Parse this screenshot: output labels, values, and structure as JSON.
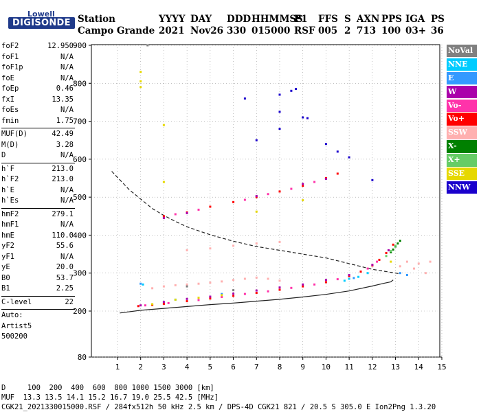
{
  "logo": {
    "top": "Lowell",
    "main": "DIGISONDE"
  },
  "header": {
    "labels": [
      "Station",
      "YYYY",
      "DAY",
      "DDD",
      "HHMMSS",
      "P1",
      "FFS",
      "S",
      "AXN",
      "PPS",
      "IGA",
      "PS"
    ],
    "values": [
      "Campo Grande",
      "2021",
      "Nov26",
      "330",
      "015000",
      "RSF",
      "005",
      "2",
      "713",
      "100",
      "03+",
      "36"
    ]
  },
  "params": [
    {
      "name": "foF2",
      "value": "12.950"
    },
    {
      "name": "foF1",
      "value": "N/A"
    },
    {
      "name": "foF1p",
      "value": "N/A"
    },
    {
      "name": "foE",
      "value": "N/A"
    },
    {
      "name": "foEp",
      "value": "0.46"
    },
    {
      "name": "fxI",
      "value": "13.35"
    },
    {
      "name": "foEs",
      "value": "N/A"
    },
    {
      "name": "fmin",
      "value": "1.75"
    },
    {
      "sep": true
    },
    {
      "name": "MUF(D)",
      "value": "42.49"
    },
    {
      "name": "M(D)",
      "value": "3.28"
    },
    {
      "name": "D",
      "value": "N/A"
    },
    {
      "sep": true
    },
    {
      "name": "h`F",
      "value": "213.0"
    },
    {
      "name": "h`F2",
      "value": "213.0"
    },
    {
      "name": "h`E",
      "value": "N/A"
    },
    {
      "name": "h`Es",
      "value": "N/A"
    },
    {
      "sep": true
    },
    {
      "name": "hmF2",
      "value": "279.1"
    },
    {
      "name": "hmF1",
      "value": "N/A"
    },
    {
      "name": "hmE",
      "value": "110.0"
    },
    {
      "name": "yF2",
      "value": "55.6"
    },
    {
      "name": "yF1",
      "value": "N/A"
    },
    {
      "name": "yE",
      "value": "20.0"
    },
    {
      "name": "B0",
      "value": "53.7"
    },
    {
      "name": "B1",
      "value": "2.25"
    },
    {
      "sep": true
    },
    {
      "name": "C-level",
      "value": "22"
    },
    {
      "sep": true
    },
    {
      "text": "Auto:"
    },
    {
      "text": "Artist5"
    },
    {
      "text": "500200"
    }
  ],
  "legend": [
    {
      "label": "NoVal",
      "color": "#808080"
    },
    {
      "label": "NNE",
      "color": "#00ccff"
    },
    {
      "label": "E",
      "color": "#3399ff"
    },
    {
      "label": "W",
      "color": "#aa00aa"
    },
    {
      "label": "Vo-",
      "color": "#ff33aa"
    },
    {
      "label": "Vo+",
      "color": "#ff0000"
    },
    {
      "label": "SSW",
      "color": "#ffb0b0"
    },
    {
      "label": "X-",
      "color": "#008000"
    },
    {
      "label": "X+",
      "color": "#66cc66"
    },
    {
      "label": "SSE",
      "color": "#e6d800"
    },
    {
      "label": "NNW",
      "color": "#1a00cc"
    }
  ],
  "footer": {
    "line1": "D     100  200  400  600  800 1000 1500 3000 [km]",
    "line2": "MUF  13.3 13.5 14.1 15.2 16.7 19.0 25.5 42.5 [MHz]",
    "line3": "CGK21_2021330015000.RSF / 284fx512h 50 kHz 2.5 km / DPS-4D CGK21 821 / 20.5 S 305.0 E Ion2Png 1.3.20"
  },
  "chart_data": {
    "type": "scatter",
    "xlim": [
      0.75,
      15
    ],
    "ylim": [
      80,
      900
    ],
    "xticks": [
      "1",
      "2",
      "3",
      "4",
      "5",
      "6",
      "7",
      "8",
      "9",
      "10",
      "11",
      "12",
      "13",
      "14",
      "15"
    ],
    "yticks": [
      "80",
      "200",
      "300",
      "400",
      "500",
      "600",
      "700",
      "800",
      "900"
    ],
    "series": [
      {
        "name": "Vo+",
        "color": "#ff0000",
        "points": [
          [
            1.9,
            213
          ],
          [
            2.5,
            216
          ],
          [
            3.0,
            219
          ],
          [
            4.0,
            226
          ],
          [
            5.0,
            233
          ],
          [
            6.0,
            240
          ],
          [
            7.0,
            248
          ],
          [
            8.0,
            256
          ],
          [
            9.0,
            265
          ],
          [
            10.0,
            276
          ],
          [
            11.0,
            292
          ],
          [
            11.5,
            304
          ],
          [
            12.0,
            320
          ],
          [
            12.3,
            335
          ],
          [
            12.6,
            353
          ],
          [
            12.9,
            375
          ],
          [
            3.0,
            450
          ],
          [
            4.0,
            460
          ],
          [
            5.0,
            475
          ],
          [
            6.0,
            487
          ],
          [
            7.0,
            500
          ],
          [
            8.0,
            515
          ],
          [
            9.0,
            530
          ],
          [
            10.0,
            550
          ],
          [
            10.5,
            562
          ]
        ]
      },
      {
        "name": "Vo-",
        "color": "#ff33aa",
        "points": [
          [
            2.2,
            215
          ],
          [
            3.2,
            221
          ],
          [
            4.5,
            229
          ],
          [
            5.5,
            237
          ],
          [
            6.5,
            245
          ],
          [
            7.5,
            252
          ],
          [
            8.5,
            261
          ],
          [
            9.5,
            270
          ],
          [
            10.5,
            284
          ],
          [
            11.8,
            312
          ],
          [
            12.2,
            330
          ],
          [
            3.5,
            455
          ],
          [
            4.5,
            467
          ],
          [
            6.5,
            493
          ],
          [
            7.5,
            508
          ],
          [
            8.5,
            522
          ],
          [
            9.5,
            540
          ]
        ]
      },
      {
        "name": "W",
        "color": "#aa00aa",
        "points": [
          [
            2.0,
            215
          ],
          [
            3.0,
            224
          ],
          [
            4.0,
            232
          ],
          [
            5.0,
            238
          ],
          [
            6.0,
            246
          ],
          [
            7.0,
            254
          ],
          [
            8.0,
            262
          ],
          [
            9.0,
            270
          ],
          [
            10.0,
            282
          ],
          [
            11.0,
            295
          ],
          [
            12.0,
            322
          ],
          [
            12.7,
            360
          ],
          [
            3.0,
            445
          ],
          [
            4.0,
            458
          ],
          [
            7.0,
            503
          ],
          [
            9.0,
            535
          ],
          [
            10.0,
            548
          ]
        ]
      },
      {
        "name": "X-",
        "color": "#008000",
        "points": [
          [
            12.8,
            355
          ],
          [
            13.0,
            370
          ],
          [
            13.2,
            385
          ],
          [
            13.1,
            378
          ],
          [
            12.9,
            362
          ]
        ]
      },
      {
        "name": "X+",
        "color": "#66cc66",
        "points": [
          [
            12.6,
            345
          ],
          [
            12.8,
            358
          ],
          [
            13.0,
            372
          ]
        ]
      },
      {
        "name": "NNE",
        "color": "#00ccff",
        "points": [
          [
            2.1,
            270
          ],
          [
            3.5,
            230
          ],
          [
            11.0,
            285
          ],
          [
            11.4,
            290
          ],
          [
            11.8,
            300
          ],
          [
            10.8,
            280
          ]
        ]
      },
      {
        "name": "E",
        "color": "#3399ff",
        "points": [
          [
            2.0,
            272
          ],
          [
            5.5,
            245
          ],
          [
            11.2,
            287
          ],
          [
            13.2,
            300
          ],
          [
            13.5,
            295
          ]
        ]
      },
      {
        "name": "SSW",
        "color": "#ffb0b0",
        "points": [
          [
            2.5,
            260
          ],
          [
            3.0,
            265
          ],
          [
            3.5,
            268
          ],
          [
            4.0,
            270
          ],
          [
            4.5,
            272
          ],
          [
            5.0,
            275
          ],
          [
            5.5,
            278
          ],
          [
            6.0,
            282
          ],
          [
            6.5,
            285
          ],
          [
            7.0,
            288
          ],
          [
            7.5,
            285
          ],
          [
            8.0,
            280
          ],
          [
            4.0,
            360
          ],
          [
            5.0,
            365
          ],
          [
            6.0,
            372
          ],
          [
            7.0,
            378
          ],
          [
            8.0,
            382
          ],
          [
            13.5,
            330
          ],
          [
            14.0,
            325
          ],
          [
            14.5,
            330
          ],
          [
            13.2,
            318
          ],
          [
            13.8,
            312
          ],
          [
            14.3,
            300
          ]
        ]
      },
      {
        "name": "SSE",
        "color": "#e6d800",
        "points": [
          [
            2.0,
            830
          ],
          [
            2.0,
            805
          ],
          [
            2.0,
            790
          ],
          [
            3.0,
            690
          ],
          [
            3.0,
            540
          ],
          [
            2.5,
            218
          ],
          [
            3.5,
            230
          ],
          [
            4.5,
            235
          ],
          [
            5.5,
            242
          ],
          [
            7.0,
            462
          ],
          [
            9.0,
            492
          ],
          [
            12.8,
            330
          ]
        ]
      },
      {
        "name": "NNW",
        "color": "#1a00cc",
        "points": [
          [
            6.5,
            760
          ],
          [
            7.0,
            650
          ],
          [
            8.0,
            725
          ],
          [
            8.0,
            680
          ],
          [
            8.0,
            770
          ],
          [
            8.5,
            780
          ],
          [
            8.7,
            785
          ],
          [
            9.0,
            710
          ],
          [
            9.2,
            708
          ],
          [
            10.0,
            640
          ],
          [
            10.5,
            620
          ],
          [
            11.0,
            605
          ],
          [
            12.0,
            545
          ]
        ]
      },
      {
        "name": "NoVal",
        "color": "#808080",
        "points": [
          [
            2.3,
            900
          ],
          [
            4.0,
            265
          ],
          [
            6.0,
            255
          ]
        ]
      }
    ],
    "curves": [
      {
        "style": "solid",
        "points": [
          [
            1.1,
            195
          ],
          [
            2.0,
            202
          ],
          [
            3.0,
            207
          ],
          [
            4.0,
            212
          ],
          [
            5.0,
            217
          ],
          [
            6.0,
            221
          ],
          [
            7.0,
            226
          ],
          [
            8.0,
            231
          ],
          [
            9.0,
            237
          ],
          [
            10.0,
            244
          ],
          [
            11.0,
            253
          ],
          [
            12.0,
            266
          ],
          [
            12.5,
            273
          ],
          [
            12.8,
            277
          ],
          [
            12.9,
            282
          ]
        ]
      },
      {
        "style": "dashed",
        "points": [
          [
            0.75,
            568
          ],
          [
            1.5,
            520
          ],
          [
            2.0,
            495
          ],
          [
            2.5,
            470
          ],
          [
            3.0,
            452
          ],
          [
            3.5,
            436
          ],
          [
            4.0,
            422
          ],
          [
            5.0,
            401
          ],
          [
            6.0,
            384
          ],
          [
            7.0,
            370
          ],
          [
            8.0,
            360
          ],
          [
            9.0,
            350
          ],
          [
            10.0,
            340
          ],
          [
            11.0,
            325
          ],
          [
            12.0,
            310
          ],
          [
            13.0,
            300
          ],
          [
            13.2,
            298
          ]
        ]
      }
    ]
  }
}
